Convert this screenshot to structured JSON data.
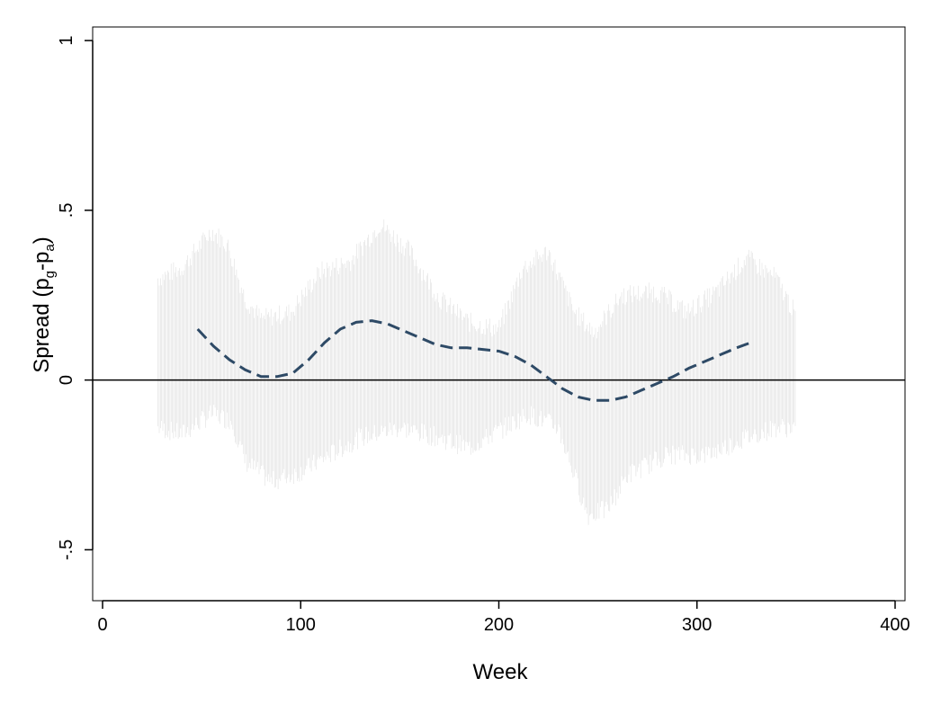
{
  "chart_data": {
    "type": "line",
    "title": "",
    "xlabel": "Week",
    "ylabel": {
      "main": "Spread (p",
      "sub1": "g",
      "dash": "-p",
      "sub2": "a",
      "close": ")"
    },
    "xlim": [
      -5,
      405
    ],
    "ylim": [
      -0.65,
      1.04
    ],
    "x_ticks": [
      0,
      100,
      200,
      300,
      400
    ],
    "x_tick_labels": [
      "0",
      "100",
      "200",
      "300",
      "400"
    ],
    "y_ticks": [
      -0.5,
      0,
      0.5,
      1
    ],
    "y_tick_labels": [
      "-.5",
      "0",
      ".5",
      "1"
    ],
    "reference_line": {
      "y": 0,
      "color": "#000000"
    },
    "grid": false,
    "scatter_band": {
      "color": "#d9d9d9",
      "x_range": [
        28,
        350
      ],
      "upper_envelope": [
        [
          28,
          0.3
        ],
        [
          40,
          0.33
        ],
        [
          55,
          0.44
        ],
        [
          63,
          0.4
        ],
        [
          72,
          0.24
        ],
        [
          80,
          0.18
        ],
        [
          95,
          0.2
        ],
        [
          110,
          0.32
        ],
        [
          125,
          0.35
        ],
        [
          140,
          0.46
        ],
        [
          155,
          0.38
        ],
        [
          170,
          0.24
        ],
        [
          185,
          0.17
        ],
        [
          200,
          0.15
        ],
        [
          212,
          0.33
        ],
        [
          225,
          0.38
        ],
        [
          238,
          0.2
        ],
        [
          248,
          0.14
        ],
        [
          262,
          0.25
        ],
        [
          280,
          0.26
        ],
        [
          295,
          0.2
        ],
        [
          310,
          0.26
        ],
        [
          325,
          0.36
        ],
        [
          340,
          0.3
        ],
        [
          350,
          0.19
        ]
      ],
      "lower_envelope": [
        [
          28,
          -0.14
        ],
        [
          40,
          -0.16
        ],
        [
          55,
          -0.1
        ],
        [
          65,
          -0.12
        ],
        [
          72,
          -0.24
        ],
        [
          85,
          -0.3
        ],
        [
          100,
          -0.27
        ],
        [
          115,
          -0.22
        ],
        [
          130,
          -0.17
        ],
        [
          150,
          -0.14
        ],
        [
          170,
          -0.17
        ],
        [
          185,
          -0.2
        ],
        [
          200,
          -0.15
        ],
        [
          215,
          -0.1
        ],
        [
          230,
          -0.14
        ],
        [
          245,
          -0.4
        ],
        [
          255,
          -0.38
        ],
        [
          265,
          -0.28
        ],
        [
          285,
          -0.22
        ],
        [
          305,
          -0.22
        ],
        [
          325,
          -0.17
        ],
        [
          340,
          -0.14
        ],
        [
          350,
          -0.14
        ]
      ]
    },
    "series": [
      {
        "style": "dashed",
        "color": "#2e4a66",
        "x": [
          48,
          56,
          64,
          72,
          80,
          88,
          96,
          104,
          112,
          120,
          128,
          136,
          144,
          152,
          160,
          168,
          176,
          184,
          192,
          200,
          208,
          216,
          224,
          232,
          240,
          248,
          256,
          264,
          272,
          280,
          288,
          296,
          304,
          312,
          320,
          327
        ],
        "y": [
          0.15,
          0.1,
          0.06,
          0.03,
          0.01,
          0.01,
          0.02,
          0.06,
          0.11,
          0.15,
          0.17,
          0.175,
          0.165,
          0.145,
          0.125,
          0.105,
          0.095,
          0.095,
          0.09,
          0.085,
          0.07,
          0.045,
          0.01,
          -0.025,
          -0.05,
          -0.06,
          -0.06,
          -0.05,
          -0.03,
          -0.01,
          0.01,
          0.035,
          0.055,
          0.075,
          0.095,
          0.11
        ]
      }
    ]
  }
}
